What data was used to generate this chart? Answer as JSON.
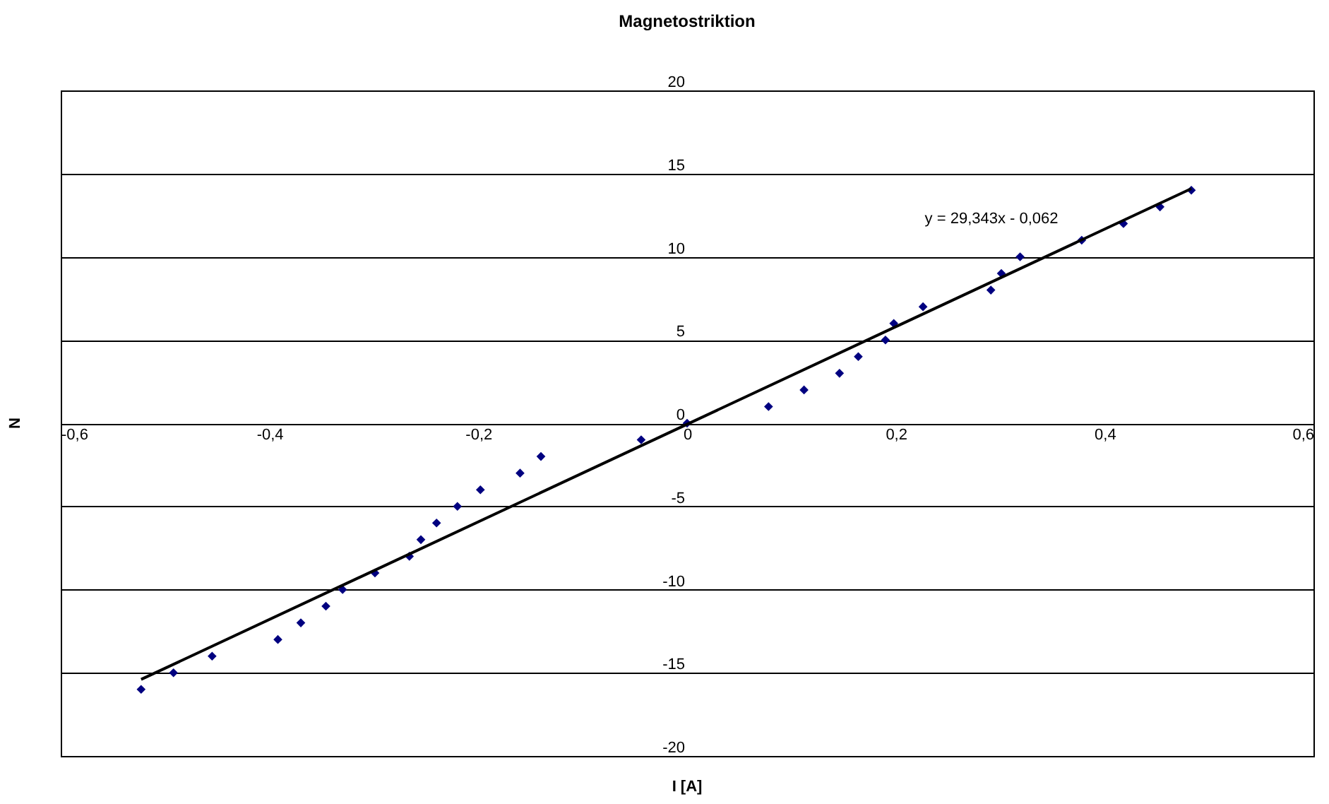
{
  "chart_data": {
    "type": "scatter",
    "title": "Magnetostriktion",
    "xlabel": "I [A]",
    "ylabel": "N",
    "xlim": [
      -0.6,
      0.6
    ],
    "ylim": [
      -20,
      20
    ],
    "xticks": [
      {
        "value": -0.6,
        "label": "-0,6"
      },
      {
        "value": -0.4,
        "label": "-0,4"
      },
      {
        "value": -0.2,
        "label": "-0,2"
      },
      0,
      {
        "value": 0.2,
        "label": "0,2"
      },
      {
        "value": 0.4,
        "label": "0,4"
      },
      {
        "value": 0.6,
        "label": "0,6"
      }
    ],
    "yticks": [
      -20,
      -15,
      -10,
      -5,
      0,
      5,
      10,
      15,
      20
    ],
    "grid": "y",
    "annotations": [
      "y = 29,343x - 0,062"
    ],
    "series": [
      {
        "color": "#000080",
        "marker": "diamond",
        "x": [
          -0.523,
          -0.492,
          -0.455,
          -0.392,
          -0.37,
          -0.346,
          -0.33,
          -0.299,
          -0.266,
          -0.255,
          -0.24,
          -0.22,
          -0.198,
          -0.16,
          -0.14,
          -0.044,
          0,
          0.078,
          0.112,
          0.146,
          0.164,
          0.19,
          0.198,
          0.226,
          0.291,
          0.301,
          0.319,
          0.378,
          0.418,
          0.453,
          0.483
        ],
        "values": [
          -16,
          -15,
          -14,
          -13,
          -12,
          -11,
          -10,
          -9,
          -8,
          -7,
          -6,
          -5,
          -4,
          -3,
          -2,
          -1,
          0,
          1,
          2,
          3,
          4,
          5,
          6,
          7,
          8,
          9,
          10,
          11,
          12,
          13,
          14
        ]
      },
      {
        "type": "line",
        "color": "#000000",
        "line_style": "solid",
        "x": [
          -0.523,
          0.483
        ],
        "values": [
          -15.4,
          14.1
        ]
      }
    ]
  }
}
